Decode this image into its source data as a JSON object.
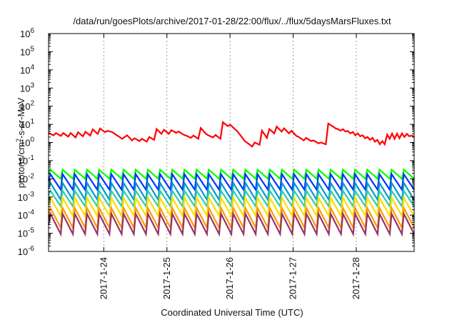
{
  "chart_data": {
    "type": "line",
    "title": "/data/run/goesPlots/archive/2017-01-28/22:00/flux/../flux/5daysMarsFluxes.txt",
    "xlabel": "Coordinated Universal Time (UTC)",
    "ylabel": "protons/cm²-s-sr-MeV",
    "ylabel_parts": [
      "protons/cm",
      "2",
      "-s-sr-MeV"
    ],
    "y_scale": "log",
    "ylim": [
      1e-06,
      1000000.0
    ],
    "y_ticks": [
      {
        "base": "10",
        "exp": "-6"
      },
      {
        "base": "10",
        "exp": "-5"
      },
      {
        "base": "10",
        "exp": "-4"
      },
      {
        "base": "10",
        "exp": "-3"
      },
      {
        "base": "10",
        "exp": "-2"
      },
      {
        "base": "10",
        "exp": "-1"
      },
      {
        "base": "10",
        "exp": "0"
      },
      {
        "base": "10",
        "exp": "1"
      },
      {
        "base": "10",
        "exp": "2"
      },
      {
        "base": "10",
        "exp": "3"
      },
      {
        "base": "10",
        "exp": "4"
      },
      {
        "base": "10",
        "exp": "5"
      },
      {
        "base": "10",
        "exp": "6"
      }
    ],
    "x_ticks": [
      "2017-1-24",
      "2017-1-25",
      "2017-1-26",
      "2017-1-27",
      "2017-1-28"
    ],
    "xlim": [
      "2017-01-23 03:00",
      "2017-01-28 22:00"
    ],
    "grid": "vertical dashed at ticks",
    "legend": "none",
    "series": [
      {
        "color": "#ff0000",
        "x": [
          "2017-01-23 03:00",
          "2017-01-23 04:52",
          "2017-01-23 05:48",
          "2017-01-23 07:40",
          "2017-01-23 08:36",
          "2017-01-23 10:28",
          "2017-01-23 11:24",
          "2017-01-23 13:16",
          "2017-01-23 14:12",
          "2017-01-23 16:04",
          "2017-01-23 17:00",
          "2017-01-23 18:52",
          "2017-01-23 19:48",
          "2017-01-23 21:40",
          "2017-01-23 22:36",
          "2017-01-24 00:28",
          "2017-01-24 01:24",
          "2017-01-24 03:16",
          "2017-01-24 07:00",
          "2017-01-24 08:52",
          "2017-01-24 10:44",
          "2017-01-24 11:40",
          "2017-01-24 13:32",
          "2017-01-24 14:28",
          "2017-01-24 16:20",
          "2017-01-24 17:16",
          "2017-01-24 19:08",
          "2017-01-24 20:04",
          "2017-01-24 21:56",
          "2017-01-24 22:52",
          "2017-01-25 00:44",
          "2017-01-25 01:40",
          "2017-01-25 03:32",
          "2017-01-25 04:28",
          "2017-01-25 06:20",
          "2017-01-25 07:16",
          "2017-01-25 09:08",
          "2017-01-25 10:04",
          "2017-01-25 11:56",
          "2017-01-25 12:52",
          "2017-01-25 14:44",
          "2017-01-25 15:40",
          "2017-01-25 17:32",
          "2017-01-25 18:28",
          "2017-01-25 20:20",
          "2017-01-25 21:16",
          "2017-01-25 23:08",
          "2017-01-26 00:04",
          "2017-01-26 02:51",
          "2017-01-26 05:38",
          "2017-01-26 08:25",
          "2017-01-26 09:21",
          "2017-01-26 11:13",
          "2017-01-26 12:09",
          "2017-01-26 14:01",
          "2017-01-26 14:57",
          "2017-01-26 16:49",
          "2017-01-26 17:45",
          "2017-01-26 19:37",
          "2017-01-26 20:33",
          "2017-01-26 22:25",
          "2017-01-26 23:21",
          "2017-01-27 01:13",
          "2017-01-27 02:09",
          "2017-01-27 04:01",
          "2017-01-27 04:57",
          "2017-01-27 06:49",
          "2017-01-27 07:45",
          "2017-01-27 09:37",
          "2017-01-27 10:33",
          "2017-01-27 12:25",
          "2017-01-27 13:21",
          "2017-01-27 14:17",
          "2017-01-27 15:13",
          "2017-01-27 16:09",
          "2017-01-27 17:05",
          "2017-01-27 18:01",
          "2017-01-27 18:57",
          "2017-01-27 19:53",
          "2017-01-27 20:49",
          "2017-01-27 21:45",
          "2017-01-27 22:41",
          "2017-01-27 23:37",
          "2017-01-28 00:33",
          "2017-01-28 01:29",
          "2017-01-28 02:25",
          "2017-01-28 03:21",
          "2017-01-28 04:17",
          "2017-01-28 05:13",
          "2017-01-28 06:09",
          "2017-01-28 07:05",
          "2017-01-28 08:01",
          "2017-01-28 08:57",
          "2017-01-28 09:53",
          "2017-01-28 10:49",
          "2017-01-28 11:45",
          "2017-01-28 12:41",
          "2017-01-28 13:37",
          "2017-01-28 14:33",
          "2017-01-28 15:29",
          "2017-01-28 16:25",
          "2017-01-28 17:21",
          "2017-01-28 18:17",
          "2017-01-28 19:13",
          "2017-01-28 20:09",
          "2017-01-28 21:05",
          "2017-01-28 22:00"
        ],
        "y": [
          3.3,
          2.5,
          3.3,
          2.3,
          3.3,
          2.1,
          3.3,
          1.9,
          3.7,
          2.2,
          3.9,
          2.4,
          5.3,
          3.0,
          5.9,
          3.7,
          4.4,
          3.7,
          1.6,
          2.5,
          1.3,
          1.7,
          1.2,
          1.6,
          1.1,
          2.0,
          1.4,
          5.5,
          3.0,
          5.0,
          3.0,
          4.8,
          3.4,
          4.0,
          2.7,
          2.4,
          1.8,
          2.4,
          1.6,
          6.3,
          3.1,
          2.5,
          1.9,
          2.6,
          1.6,
          13.0,
          8.0,
          9.5,
          4.0,
          1.2,
          0.6,
          1.0,
          0.75,
          4.5,
          1.8,
          5.5,
          3.2,
          7.5,
          4.0,
          6.0,
          3.2,
          4.4,
          2.3,
          2.0,
          1.3,
          1.8,
          1.2,
          1.3,
          0.9,
          1.0,
          0.8,
          11.0,
          9.0,
          7.5,
          6.0,
          5.4,
          4.5,
          5.4,
          4.0,
          4.3,
          3.2,
          3.8,
          2.5,
          3.2,
          2.2,
          2.5,
          1.7,
          2.0,
          1.4,
          1.8,
          1.1,
          1.4,
          0.8,
          1.2,
          0.8,
          2.7,
          1.6,
          3.1,
          1.6,
          3.1,
          1.7,
          3.2,
          2.0,
          3.0,
          2.2,
          2.4,
          2.0
        ]
      },
      {
        "color": "#00ff00",
        "start": 0.018,
        "peak": 0.032,
        "trough": 0.01,
        "cycles": 30
      },
      {
        "color": "#0033ff",
        "start": 0.008,
        "peak": 0.018,
        "trough": 0.0025,
        "cycles": 30
      },
      {
        "color": "#0099cc",
        "start": 0.003,
        "peak": 0.006,
        "trough": 0.0007,
        "cycles": 30
      },
      {
        "color": "#33ccaa",
        "start": 0.0012,
        "peak": 0.0022,
        "trough": 0.0003,
        "cycles": 30
      },
      {
        "color": "#ffdd00",
        "start": 0.0004,
        "peak": 0.0009,
        "trough": 9e-05,
        "cycles": 30
      },
      {
        "color": "#ff9900",
        "start": 8e-05,
        "peak": 0.00025,
        "trough": 2e-05,
        "cycles": 30
      },
      {
        "color": "#993366",
        "start": 3e-05,
        "peak": 0.00012,
        "trough": 9e-06,
        "cycles": 30
      }
    ]
  }
}
